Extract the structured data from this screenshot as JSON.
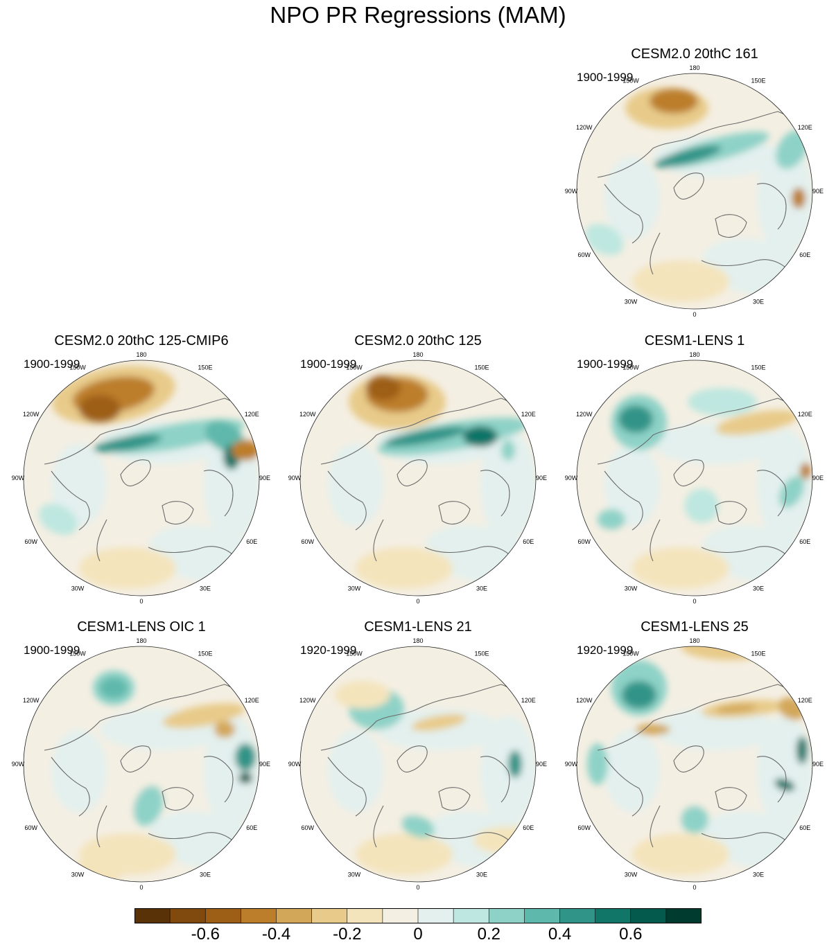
{
  "title": "NPO PR Regressions (MAM)",
  "colors": [
    "#5a3208",
    "#80490e",
    "#9d5e15",
    "#bc7e2b",
    "#d3a75a",
    "#e8cb8a",
    "#f4e4bc",
    "#f4efe3",
    "#e3f0ee",
    "#bde7e0",
    "#8ed2c7",
    "#5eb8ab",
    "#309488",
    "#117568",
    "#045a4c",
    "#003b30"
  ],
  "colorbar": {
    "levels": [
      -0.7,
      -0.6,
      -0.5,
      -0.4,
      -0.3,
      -0.2,
      -0.1,
      0,
      0.1,
      0.2,
      0.3,
      0.4,
      0.5,
      0.6,
      0.7
    ],
    "labels": [
      "-0.6",
      "-0.4",
      "-0.2",
      "0",
      "0.2",
      "0.4",
      "0.6"
    ]
  },
  "lon_labels": [
    "180",
    "150E",
    "120E",
    "90E",
    "60E",
    "30E",
    "0",
    "30W",
    "60W",
    "90W",
    "120W",
    "150W"
  ],
  "panels": [
    {
      "id": "p1",
      "title": "CESM2.0 20thC 161",
      "period": "1900-1999"
    },
    {
      "id": "p2",
      "title": "CESM2.0 20thC 125-CMIP6",
      "period": "1900-1999"
    },
    {
      "id": "p3",
      "title": "CESM2.0 20thC 125",
      "period": "1900-1999"
    },
    {
      "id": "p4",
      "title": "CESM1-LENS 1",
      "period": "1900-1999"
    },
    {
      "id": "p5",
      "title": "CESM1-LENS OIC 1",
      "period": "1900-1999"
    },
    {
      "id": "p6",
      "title": "CESM1-LENS 21",
      "period": "1920-1999"
    },
    {
      "id": "p7",
      "title": "CESM1-LENS 25",
      "period": "1920-1999"
    }
  ]
}
